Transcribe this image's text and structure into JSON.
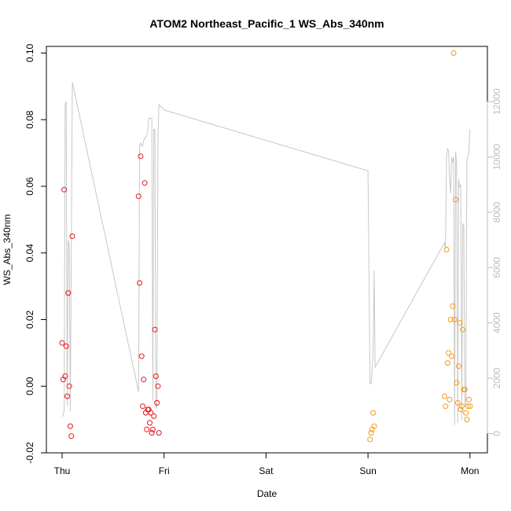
{
  "chart_data": {
    "type": "scatter",
    "title": "ATOM2 Northeast_Pacific_1 WS_Abs_340nm",
    "xlabel": "Date",
    "ylabel": "WS_Abs_340nm",
    "x_tick_labels": [
      "Thu",
      "Fri",
      "Sat",
      "Sun",
      "Mon"
    ],
    "x_tick_positions_days": [
      0,
      1,
      2,
      3,
      4
    ],
    "xlim_days": [
      -0.2,
      4.2
    ],
    "ylim": [
      -0.02,
      0.102
    ],
    "y_ticks": [
      -0.02,
      0.0,
      0.02,
      0.04,
      0.06,
      0.08,
      0.1
    ],
    "y_tick_labels": [
      "-0.02",
      "0.00",
      "0.02",
      "0.04",
      "0.06",
      "0.08",
      "0.10"
    ],
    "y2_ticks": [
      0,
      2000,
      4000,
      6000,
      8000,
      10000,
      12000
    ],
    "y2_tick_labels": [
      "0",
      "2000",
      "4000",
      "6000",
      "8000",
      "10000",
      "12000"
    ],
    "y2_range": [
      -700,
      14000
    ],
    "grid": false,
    "colors": {
      "red": "#e8141c",
      "orange": "#f39a1e",
      "altitude": "#c8c8c8"
    },
    "series": [
      {
        "color": "red",
        "points": [
          [
            0.0,
            0.013
          ],
          [
            0.01,
            0.002
          ],
          [
            0.02,
            0.059
          ],
          [
            0.03,
            0.003
          ],
          [
            0.04,
            0.012
          ],
          [
            0.05,
            -0.003
          ],
          [
            0.06,
            0.028
          ],
          [
            0.07,
            0.0
          ],
          [
            0.08,
            -0.012
          ],
          [
            0.09,
            -0.015
          ],
          [
            0.1,
            0.045
          ],
          [
            0.75,
            0.057
          ],
          [
            0.76,
            0.031
          ],
          [
            0.77,
            0.069
          ],
          [
            0.78,
            0.009
          ],
          [
            0.79,
            -0.006
          ],
          [
            0.8,
            0.002
          ],
          [
            0.81,
            0.061
          ],
          [
            0.82,
            -0.008
          ],
          [
            0.83,
            -0.013
          ],
          [
            0.84,
            -0.007
          ],
          [
            0.85,
            -0.007
          ],
          [
            0.86,
            -0.011
          ],
          [
            0.87,
            -0.008
          ],
          [
            0.88,
            -0.014
          ],
          [
            0.89,
            -0.013
          ],
          [
            0.9,
            -0.009
          ],
          [
            0.91,
            0.017
          ],
          [
            0.92,
            0.003
          ],
          [
            0.93,
            -0.005
          ],
          [
            0.94,
            0.0
          ],
          [
            0.95,
            -0.014
          ]
        ]
      },
      {
        "color": "orange",
        "points": [
          [
            3.02,
            -0.016
          ],
          [
            3.03,
            -0.014
          ],
          [
            3.04,
            -0.013
          ],
          [
            3.05,
            -0.008
          ],
          [
            3.06,
            -0.012
          ],
          [
            3.75,
            -0.003
          ],
          [
            3.76,
            -0.006
          ],
          [
            3.77,
            0.041
          ],
          [
            3.78,
            0.007
          ],
          [
            3.79,
            0.01
          ],
          [
            3.8,
            -0.004
          ],
          [
            3.81,
            0.02
          ],
          [
            3.82,
            0.009
          ],
          [
            3.83,
            0.024
          ],
          [
            3.84,
            0.1
          ],
          [
            3.85,
            0.02
          ],
          [
            3.86,
            0.056
          ],
          [
            3.87,
            0.001
          ],
          [
            3.88,
            -0.005
          ],
          [
            3.89,
            0.006
          ],
          [
            3.9,
            0.019
          ],
          [
            3.91,
            -0.007
          ],
          [
            3.92,
            -0.006
          ],
          [
            3.93,
            0.017
          ],
          [
            3.94,
            -0.001
          ],
          [
            3.95,
            -0.001
          ],
          [
            3.96,
            -0.008
          ],
          [
            3.97,
            -0.01
          ],
          [
            3.98,
            -0.006
          ],
          [
            3.99,
            -0.004
          ],
          [
            4.0,
            -0.006
          ]
        ]
      }
    ],
    "altitude_line": {
      "color": "altitude",
      "points": [
        [
          0.0,
          600
        ],
        [
          0.02,
          800
        ],
        [
          0.03,
          11900
        ],
        [
          0.04,
          12000
        ],
        [
          0.05,
          1000
        ],
        [
          0.06,
          7000
        ],
        [
          0.07,
          6800
        ],
        [
          0.08,
          800
        ],
        [
          0.09,
          6600
        ],
        [
          0.1,
          12700
        ],
        [
          0.75,
          1500
        ],
        [
          0.76,
          10400
        ],
        [
          0.77,
          10500
        ],
        [
          0.78,
          10400
        ],
        [
          0.79,
          10400
        ],
        [
          0.8,
          10600
        ],
        [
          0.81,
          10700
        ],
        [
          0.82,
          10700
        ],
        [
          0.83,
          10800
        ],
        [
          0.84,
          10900
        ],
        [
          0.85,
          11400
        ],
        [
          0.86,
          11400
        ],
        [
          0.87,
          11400
        ],
        [
          0.88,
          11400
        ],
        [
          0.89,
          1200
        ],
        [
          0.9,
          11000
        ],
        [
          0.91,
          11000
        ],
        [
          0.92,
          900
        ],
        [
          0.93,
          1000
        ],
        [
          0.94,
          10700
        ],
        [
          0.95,
          11900
        ],
        [
          1.0,
          11700
        ],
        [
          3.0,
          9500
        ],
        [
          3.02,
          1800
        ],
        [
          3.03,
          1800
        ],
        [
          3.04,
          2200
        ],
        [
          3.05,
          3000
        ],
        [
          3.06,
          5900
        ],
        [
          3.07,
          2400
        ],
        [
          3.75,
          6900
        ],
        [
          3.76,
          6700
        ],
        [
          3.77,
          10000
        ],
        [
          3.78,
          10300
        ],
        [
          3.79,
          10200
        ],
        [
          3.8,
          9200
        ],
        [
          3.81,
          8700
        ],
        [
          3.82,
          10000
        ],
        [
          3.83,
          9800
        ],
        [
          3.84,
          10000
        ],
        [
          3.85,
          300
        ],
        [
          3.86,
          10200
        ],
        [
          3.87,
          9700
        ],
        [
          3.88,
          400
        ],
        [
          3.89,
          9200
        ],
        [
          3.9,
          8900
        ],
        [
          3.91,
          9000
        ],
        [
          3.92,
          500
        ],
        [
          3.93,
          7600
        ],
        [
          3.94,
          7500
        ],
        [
          3.95,
          1000
        ],
        [
          3.96,
          1100
        ],
        [
          3.97,
          9900
        ],
        [
          3.98,
          10000
        ],
        [
          3.99,
          10200
        ],
        [
          4.0,
          11000
        ]
      ]
    }
  }
}
